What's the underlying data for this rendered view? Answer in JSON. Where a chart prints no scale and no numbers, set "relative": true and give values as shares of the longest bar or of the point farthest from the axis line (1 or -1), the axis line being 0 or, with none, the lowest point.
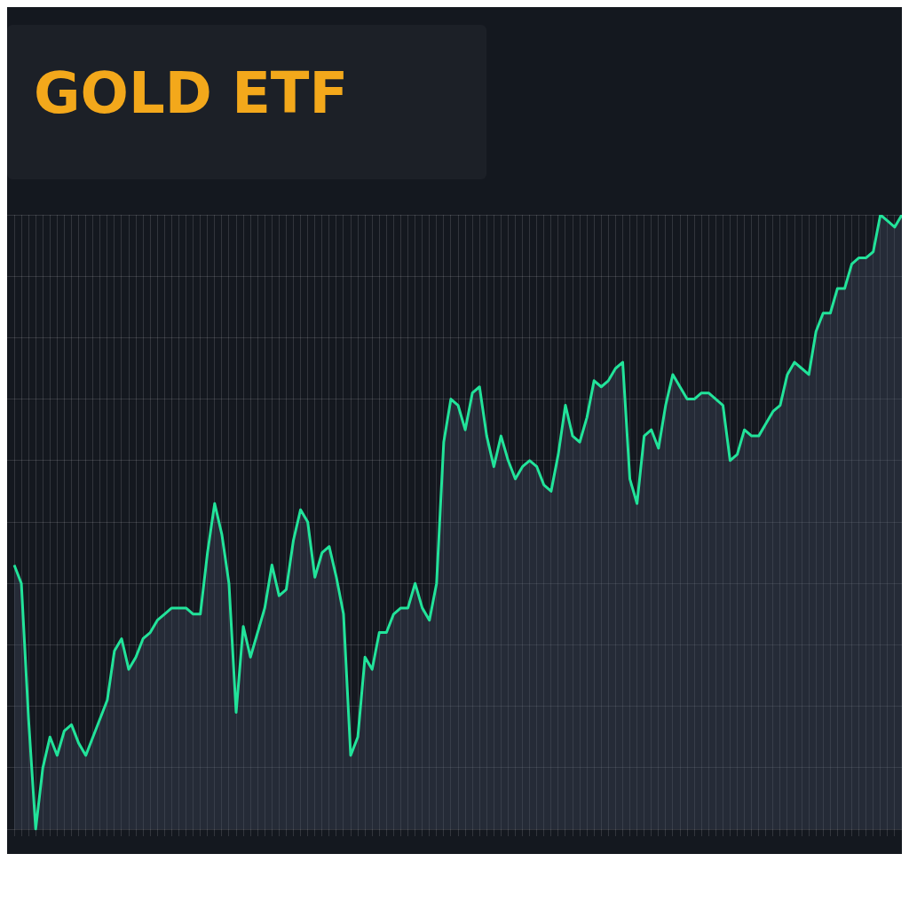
{
  "chart_data": {
    "type": "area",
    "title": "GOLD ETF",
    "relative": true,
    "grid": true,
    "categories": [
      null,
      null,
      null,
      null,
      null,
      null,
      null,
      null,
      null,
      null,
      null,
      null,
      null,
      null,
      null,
      null,
      null,
      null,
      null,
      null,
      null,
      null,
      null,
      null,
      null,
      null,
      null,
      null,
      null,
      null,
      null,
      null,
      null,
      null,
      null,
      null,
      null,
      null,
      null,
      null,
      null,
      null,
      null,
      null,
      null,
      null,
      null,
      null,
      null,
      null,
      null,
      null,
      null,
      null,
      null,
      null,
      null,
      null,
      null,
      null,
      null,
      null,
      null,
      null,
      null,
      null,
      null,
      null,
      null,
      null,
      null,
      null,
      null,
      null,
      null,
      null,
      null,
      null,
      null,
      null,
      null,
      null,
      null,
      null,
      null,
      null,
      null,
      null,
      null,
      null,
      null,
      null,
      null,
      null,
      null,
      null,
      null,
      null,
      null,
      null,
      null,
      null,
      null,
      null,
      null,
      null,
      null,
      null,
      null,
      null,
      null,
      null,
      null,
      null,
      null,
      null,
      null,
      null,
      null,
      null,
      null,
      null,
      null,
      null,
      null
    ],
    "series": [
      {
        "color": "#22e39a",
        "values": [
          0.43,
          0.4,
          0.18,
          0,
          0.1,
          0.15,
          0.12,
          0.16,
          0.17,
          0.14,
          0.12,
          0.15,
          0.18,
          0.21,
          0.29,
          0.31,
          0.26,
          0.28,
          0.31,
          0.32,
          0.34,
          0.35,
          0.36,
          0.36,
          0.36,
          0.35,
          0.35,
          0.45,
          0.53,
          0.48,
          0.4,
          0.19,
          0.33,
          0.28,
          0.32,
          0.36,
          0.43,
          0.38,
          0.39,
          0.47,
          0.52,
          0.5,
          0.41,
          0.45,
          0.46,
          0.41,
          0.35,
          0.12,
          0.15,
          0.28,
          0.26,
          0.32,
          0.32,
          0.35,
          0.36,
          0.36,
          0.4,
          0.36,
          0.34,
          0.4,
          0.63,
          0.7,
          0.69,
          0.65,
          0.71,
          0.72,
          0.64,
          0.59,
          0.64,
          0.6,
          0.57,
          0.59,
          0.6,
          0.59,
          0.56,
          0.55,
          0.61,
          0.69,
          0.64,
          0.63,
          0.67,
          0.73,
          0.72,
          0.73,
          0.75,
          0.76,
          0.57,
          0.53,
          0.64,
          0.65,
          0.62,
          0.69,
          0.74,
          0.72,
          0.7,
          0.7,
          0.71,
          0.71,
          0.7,
          0.69,
          0.6,
          0.61,
          0.65,
          0.64,
          0.64,
          0.66,
          0.68,
          0.69,
          0.74,
          0.76,
          0.75,
          0.74,
          0.81,
          0.84,
          0.84,
          0.88,
          0.88,
          0.92,
          0.93,
          0.93,
          0.94,
          1,
          0.99,
          0.98,
          1
        ]
      }
    ]
  }
}
